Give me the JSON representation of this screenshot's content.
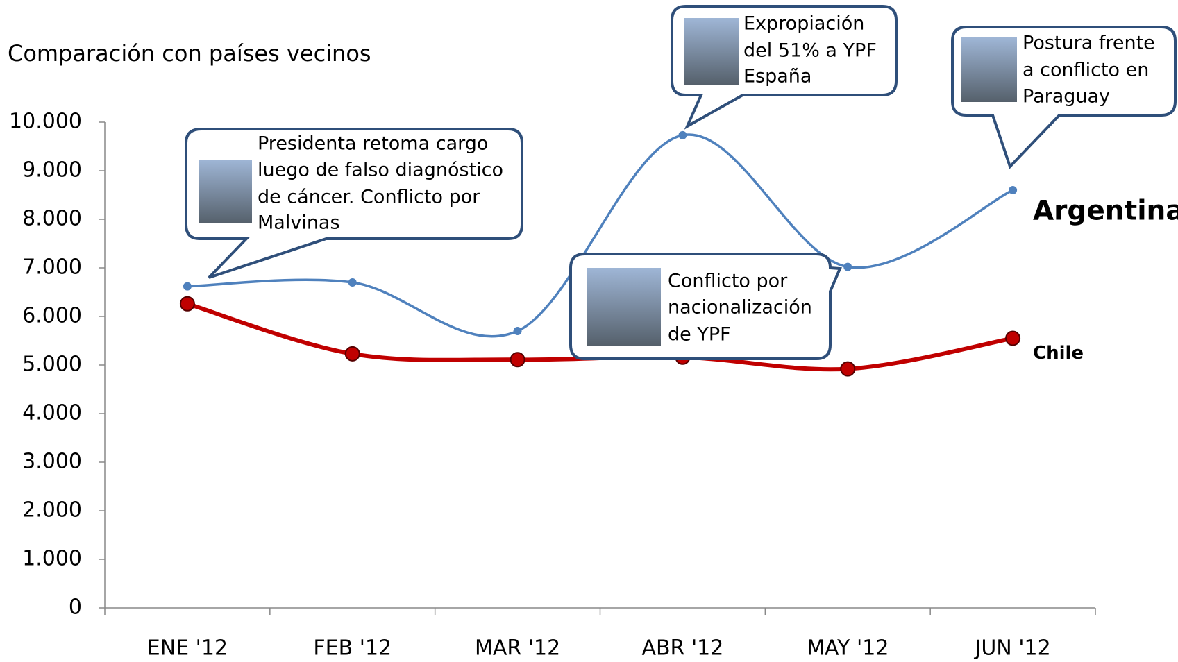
{
  "chart_data": {
    "type": "line",
    "title": "Comparación con países vecinos",
    "categories": [
      "ENE '12",
      "FEB '12",
      "MAR '12",
      "ABR '12",
      "MAY '12",
      "JUN '12"
    ],
    "series": [
      {
        "name": "Argentina",
        "color": "#4f81bd",
        "values": [
          6620,
          6700,
          5700,
          9730,
          7020,
          8600
        ]
      },
      {
        "name": "Chile",
        "color": "#c00000",
        "values": [
          6260,
          5230,
          5110,
          5160,
          4920,
          5550
        ]
      }
    ],
    "ylim": [
      0,
      10000
    ],
    "yticks": [
      0,
      {
        "value": 1000,
        "label": "1.000"
      },
      {
        "value": 2000,
        "label": "2.000"
      },
      {
        "value": 3000,
        "label": "3.000"
      },
      {
        "value": 4000,
        "label": "4.000"
      },
      {
        "value": 5000,
        "label": "5.000"
      },
      {
        "value": 6000,
        "label": "6.000"
      },
      {
        "value": 7000,
        "label": "7.000"
      },
      {
        "value": 8000,
        "label": "8.000"
      },
      {
        "value": 9000,
        "label": "9.000"
      },
      {
        "value": 10000,
        "label": "10.000"
      }
    ],
    "annotations": [
      [
        "Presidenta retoma cargo",
        "luego de falso diagnóstico",
        "de cáncer. Conflicto por",
        "Malvinas"
      ],
      [
        "Expropiación",
        "del 51% a YPF",
        "España"
      ],
      [
        "Postura frente",
        "a conflicto en",
        "Paraguay"
      ],
      [
        "Conflicto por",
        "nacionalización",
        "de YPF"
      ]
    ]
  }
}
